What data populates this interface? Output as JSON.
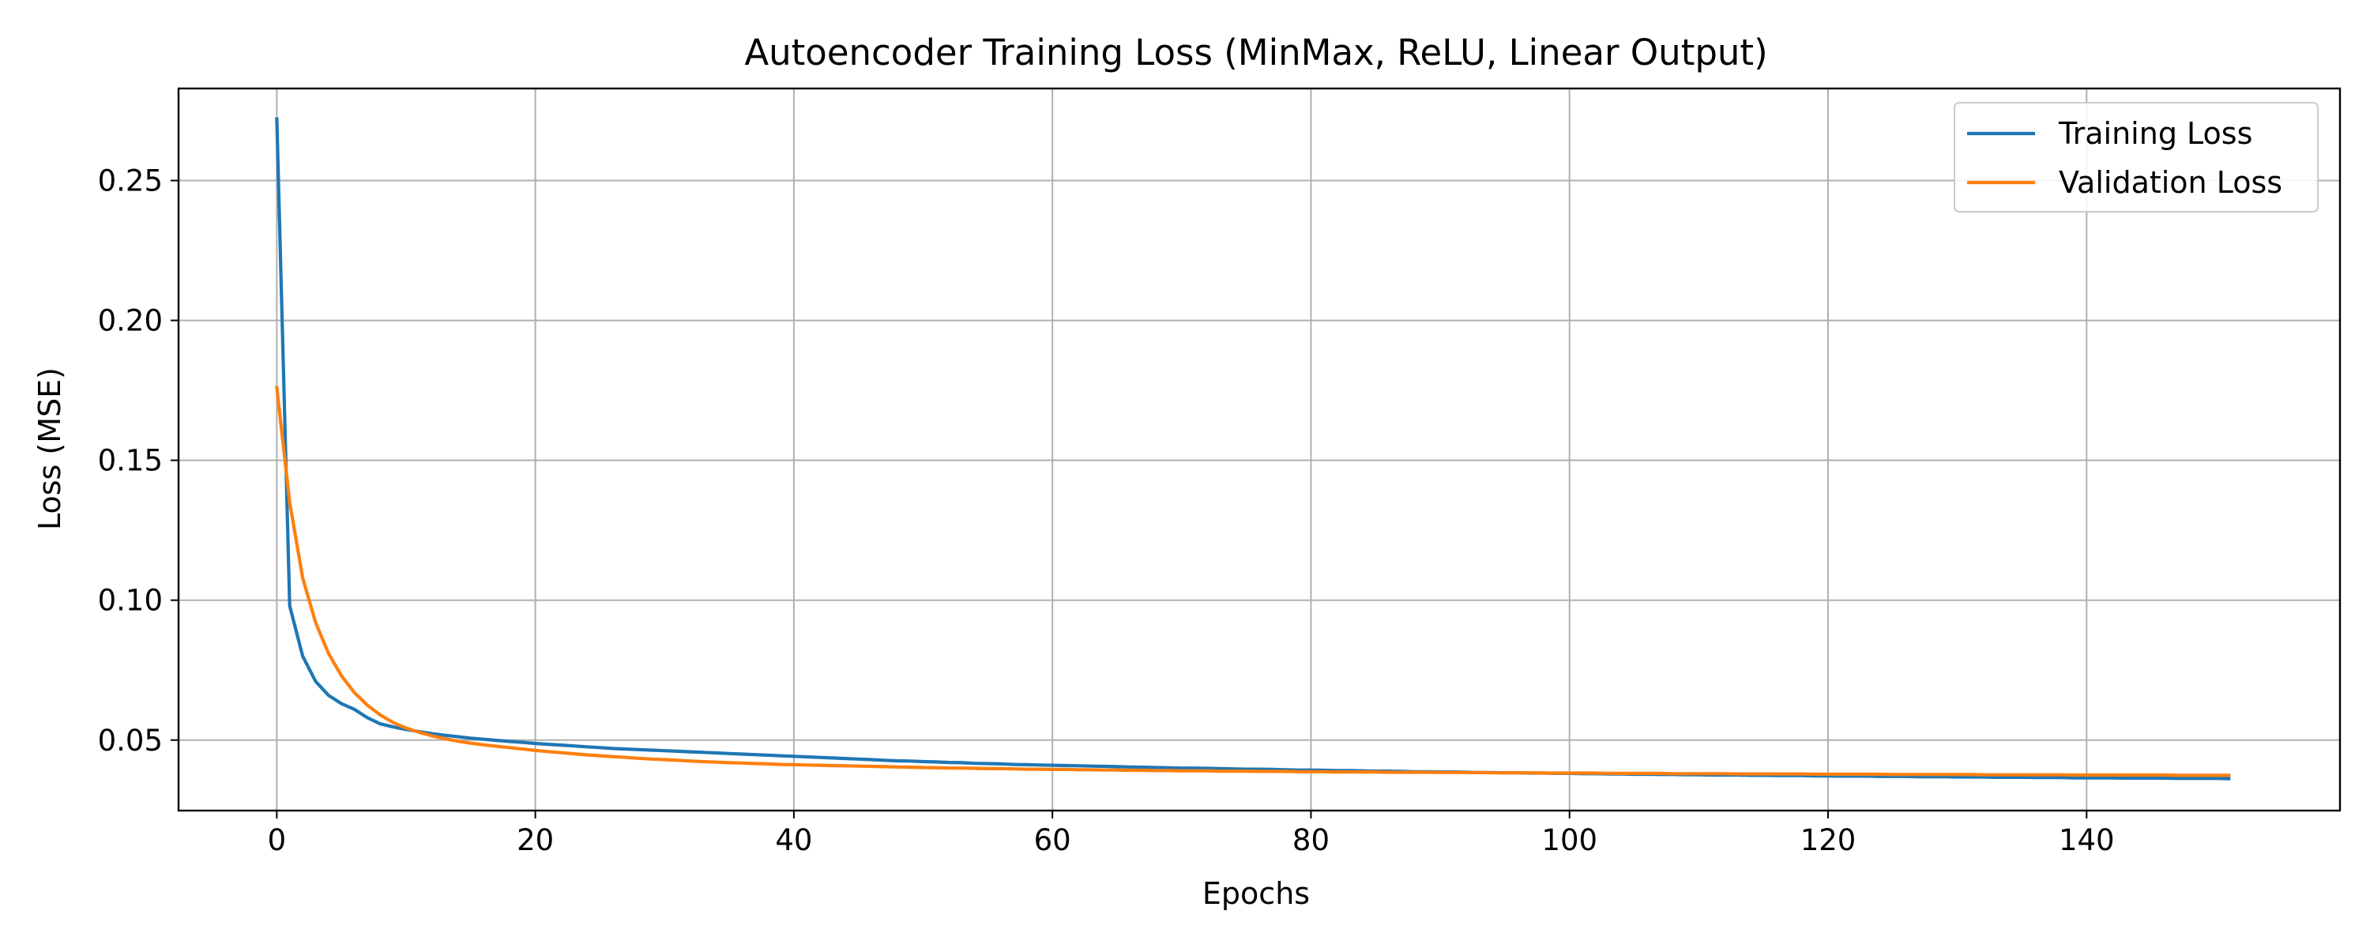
{
  "chart_data": {
    "type": "line",
    "title": "Autoencoder Training Loss (MinMax, ReLU, Linear Output)",
    "xlabel": "Epochs",
    "ylabel": "Loss (MSE)",
    "xlim": [
      -7.6,
      159.6
    ],
    "ylim": [
      0.0248,
      0.2829
    ],
    "xticks": [
      0,
      20,
      40,
      60,
      80,
      100,
      120,
      140
    ],
    "yticks": [
      0.05,
      0.1,
      0.15,
      0.2,
      0.25
    ],
    "grid": true,
    "legend_position": "top-right",
    "series": [
      {
        "name": "Training Loss",
        "color": "#1f77b4",
        "x": [
          0,
          1,
          2,
          3,
          4,
          5,
          6,
          7,
          8,
          9,
          10,
          11,
          12,
          13,
          14,
          15,
          16,
          17,
          18,
          19,
          20,
          21,
          22,
          23,
          24,
          25,
          26,
          27,
          28,
          29,
          30,
          31,
          32,
          33,
          34,
          35,
          36,
          37,
          38,
          39,
          40,
          41,
          42,
          43,
          44,
          45,
          46,
          47,
          48,
          49,
          50,
          51,
          52,
          53,
          54,
          55,
          56,
          57,
          58,
          59,
          60,
          61,
          62,
          63,
          64,
          65,
          66,
          67,
          68,
          69,
          70,
          71,
          72,
          73,
          74,
          75,
          76,
          77,
          78,
          79,
          80,
          81,
          82,
          83,
          84,
          85,
          86,
          87,
          88,
          89,
          90,
          91,
          92,
          93,
          94,
          95,
          96,
          97,
          98,
          99,
          100,
          101,
          102,
          103,
          104,
          105,
          106,
          107,
          108,
          109,
          110,
          111,
          112,
          113,
          114,
          115,
          116,
          117,
          118,
          119,
          120,
          121,
          122,
          123,
          124,
          125,
          126,
          127,
          128,
          129,
          130,
          131,
          132,
          133,
          134,
          135,
          136,
          137,
          138,
          139,
          140,
          141,
          142,
          143,
          144,
          145,
          146,
          147,
          148,
          149,
          150,
          151
        ],
        "y": [
          0.272,
          0.098,
          0.08,
          0.071,
          0.066,
          0.063,
          0.061,
          0.058,
          0.0558,
          0.0547,
          0.0538,
          0.053,
          0.0523,
          0.0517,
          0.0512,
          0.0507,
          0.0503,
          0.0499,
          0.0495,
          0.0492,
          0.0488,
          0.0485,
          0.0482,
          0.0479,
          0.0476,
          0.0473,
          0.047,
          0.0468,
          0.0466,
          0.0464,
          0.0462,
          0.046,
          0.0458,
          0.0456,
          0.0454,
          0.0452,
          0.045,
          0.0448,
          0.0446,
          0.0444,
          0.0442,
          0.044,
          0.0438,
          0.0436,
          0.0434,
          0.0432,
          0.043,
          0.0428,
          0.0426,
          0.0425,
          0.0423,
          0.0422,
          0.042,
          0.0419,
          0.0417,
          0.0416,
          0.0415,
          0.0413,
          0.0412,
          0.0411,
          0.041,
          0.0409,
          0.0408,
          0.0407,
          0.0406,
          0.0405,
          0.0404,
          0.0403,
          0.0402,
          0.0401,
          0.04,
          0.04,
          0.0399,
          0.0398,
          0.0397,
          0.0396,
          0.0396,
          0.0395,
          0.0394,
          0.0393,
          0.0393,
          0.0392,
          0.0391,
          0.0391,
          0.039,
          0.0389,
          0.0389,
          0.0388,
          0.0387,
          0.0387,
          0.0386,
          0.0386,
          0.0385,
          0.0384,
          0.0384,
          0.0383,
          0.0383,
          0.0382,
          0.0382,
          0.0381,
          0.0381,
          0.038,
          0.038,
          0.0379,
          0.0379,
          0.0378,
          0.0378,
          0.0377,
          0.0377,
          0.0376,
          0.0376,
          0.0375,
          0.0375,
          0.0375,
          0.0374,
          0.0374,
          0.0373,
          0.0373,
          0.0373,
          0.0372,
          0.0372,
          0.0371,
          0.0371,
          0.0371,
          0.037,
          0.037,
          0.037,
          0.0369,
          0.0369,
          0.0369,
          0.0368,
          0.0368,
          0.0368,
          0.0367,
          0.0367,
          0.0367,
          0.0366,
          0.0366,
          0.0366,
          0.0365,
          0.0365,
          0.0365,
          0.0365,
          0.0364,
          0.0364,
          0.0364,
          0.0364,
          0.0363,
          0.0363,
          0.0363,
          0.0363,
          0.0362
        ]
      },
      {
        "name": "Validation Loss",
        "color": "#ff7f0e",
        "x": [
          0,
          1,
          2,
          3,
          4,
          5,
          6,
          7,
          8,
          9,
          10,
          11,
          12,
          13,
          14,
          15,
          16,
          17,
          18,
          19,
          20,
          21,
          22,
          23,
          24,
          25,
          26,
          27,
          28,
          29,
          30,
          31,
          32,
          33,
          34,
          35,
          36,
          37,
          38,
          39,
          40,
          41,
          42,
          43,
          44,
          45,
          46,
          47,
          48,
          49,
          50,
          51,
          52,
          53,
          54,
          55,
          56,
          57,
          58,
          59,
          60,
          61,
          62,
          63,
          64,
          65,
          66,
          67,
          68,
          69,
          70,
          71,
          72,
          73,
          74,
          75,
          76,
          77,
          78,
          79,
          80,
          81,
          82,
          83,
          84,
          85,
          86,
          87,
          88,
          89,
          90,
          91,
          92,
          93,
          94,
          95,
          96,
          97,
          98,
          99,
          100,
          101,
          102,
          103,
          104,
          105,
          106,
          107,
          108,
          109,
          110,
          111,
          112,
          113,
          114,
          115,
          116,
          117,
          118,
          119,
          120,
          121,
          122,
          123,
          124,
          125,
          126,
          127,
          128,
          129,
          130,
          131,
          132,
          133,
          134,
          135,
          136,
          137,
          138,
          139,
          140,
          141,
          142,
          143,
          144,
          145,
          146,
          147,
          148,
          149,
          150,
          151
        ],
        "y": [
          0.176,
          0.135,
          0.108,
          0.092,
          0.081,
          0.073,
          0.067,
          0.0625,
          0.059,
          0.0563,
          0.0543,
          0.0528,
          0.0515,
          0.0505,
          0.0496,
          0.0489,
          0.0483,
          0.0478,
          0.0473,
          0.0468,
          0.0463,
          0.0459,
          0.0455,
          0.0451,
          0.0447,
          0.0444,
          0.0441,
          0.0438,
          0.0435,
          0.0432,
          0.043,
          0.0428,
          0.0425,
          0.0423,
          0.0421,
          0.0419,
          0.0418,
          0.0416,
          0.0415,
          0.0413,
          0.0412,
          0.0411,
          0.041,
          0.0409,
          0.0408,
          0.0407,
          0.0406,
          0.0405,
          0.0404,
          0.0403,
          0.0402,
          0.0401,
          0.04,
          0.04,
          0.0399,
          0.0398,
          0.0398,
          0.0397,
          0.0396,
          0.0396,
          0.0395,
          0.0395,
          0.0394,
          0.0394,
          0.0393,
          0.0393,
          0.0392,
          0.0392,
          0.0391,
          0.0391,
          0.039,
          0.039,
          0.039,
          0.0389,
          0.0389,
          0.0389,
          0.0388,
          0.0388,
          0.0388,
          0.0387,
          0.0387,
          0.0387,
          0.0386,
          0.0386,
          0.0386,
          0.0386,
          0.0385,
          0.0385,
          0.0385,
          0.0385,
          0.0384,
          0.0384,
          0.0384,
          0.0384,
          0.0383,
          0.0383,
          0.0383,
          0.0383,
          0.0382,
          0.0382,
          0.0382,
          0.0382,
          0.0382,
          0.0381,
          0.0381,
          0.0381,
          0.0381,
          0.0381,
          0.038,
          0.038,
          0.038,
          0.038,
          0.038,
          0.0379,
          0.0379,
          0.0379,
          0.0379,
          0.0379,
          0.0379,
          0.0378,
          0.0378,
          0.0378,
          0.0378,
          0.0378,
          0.0378,
          0.0377,
          0.0377,
          0.0377,
          0.0377,
          0.0377,
          0.0377,
          0.0377,
          0.0376,
          0.0376,
          0.0376,
          0.0376,
          0.0376,
          0.0376,
          0.0376,
          0.0375,
          0.0375,
          0.0375,
          0.0375,
          0.0375,
          0.0375,
          0.0375,
          0.0375,
          0.0374,
          0.0374,
          0.0374,
          0.0374,
          0.0374
        ]
      }
    ]
  }
}
